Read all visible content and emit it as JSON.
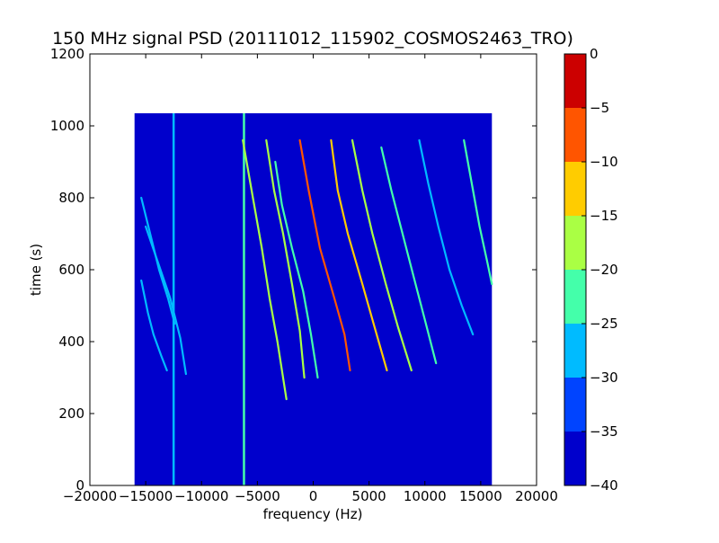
{
  "chart_data": {
    "type": "heatmap",
    "title": "150 MHz signal PSD (20111012_115902_COSMOS2463_TRO)",
    "xlabel": "frequency (Hz)",
    "ylabel": "time (s)",
    "xlim": [
      -20000,
      20000
    ],
    "ylim": [
      0,
      1200
    ],
    "x_ticks": [
      -20000,
      -15000,
      -10000,
      -5000,
      0,
      5000,
      10000,
      15000,
      20000
    ],
    "y_ticks": [
      0,
      200,
      400,
      600,
      800,
      1000,
      1200
    ],
    "data_extent": {
      "x": [
        -16000,
        16000
      ],
      "y": [
        0,
        1035
      ]
    },
    "background_level": -35,
    "colorbar": {
      "range": [
        -40,
        0
      ],
      "ticks": [
        0,
        -5,
        -10,
        -15,
        -20,
        -25,
        -30,
        -35,
        -40
      ],
      "levels": [
        {
          "from": -40,
          "to": -35,
          "color": "#0000cc"
        },
        {
          "from": -35,
          "to": -30,
          "color": "#0044ff"
        },
        {
          "from": -30,
          "to": -25,
          "color": "#00bbff"
        },
        {
          "from": -25,
          "to": -20,
          "color": "#44ffaa"
        },
        {
          "from": -20,
          "to": -15,
          "color": "#aaff44"
        },
        {
          "from": -15,
          "to": -10,
          "color": "#ffcc00"
        },
        {
          "from": -10,
          "to": -5,
          "color": "#ff5500"
        },
        {
          "from": -5,
          "to": 0,
          "color": "#cc0000"
        }
      ]
    },
    "vertical_lines": [
      {
        "x": -12500,
        "y": [
          0,
          1035
        ],
        "level": -26
      },
      {
        "x": -6200,
        "y": [
          0,
          1035
        ],
        "level": -23
      }
    ],
    "doppler_traces": [
      {
        "x": [
          -15400,
          -14600,
          -13800,
          -13000,
          -12400
        ],
        "y": [
          800,
          700,
          600,
          520,
          450
        ],
        "level": -25
      },
      {
        "x": [
          -15400,
          -14800,
          -14300,
          -13600,
          -13100
        ],
        "y": [
          570,
          480,
          420,
          360,
          320
        ],
        "level": -26
      },
      {
        "x": [
          -15000,
          -13900,
          -12800,
          -11900,
          -11400
        ],
        "y": [
          720,
          620,
          520,
          410,
          310
        ],
        "level": -27
      },
      {
        "x": [
          -6300,
          -5400,
          -4600,
          -3900,
          -3200,
          -2400
        ],
        "y": [
          960,
          800,
          660,
          520,
          400,
          240
        ],
        "level": -15
      },
      {
        "x": [
          -4200,
          -3500,
          -2700,
          -1900,
          -1200,
          -800
        ],
        "y": [
          960,
          820,
          700,
          560,
          430,
          300
        ],
        "level": -18
      },
      {
        "x": [
          -3400,
          -2800,
          -1900,
          -900,
          -200,
          400
        ],
        "y": [
          900,
          780,
          660,
          540,
          420,
          300
        ],
        "level": -22
      },
      {
        "x": [
          -1200,
          -400,
          600,
          1900,
          2800,
          3300
        ],
        "y": [
          960,
          820,
          660,
          520,
          420,
          320
        ],
        "level": -8
      },
      {
        "x": [
          1600,
          2200,
          3100,
          4400,
          5500,
          6600
        ],
        "y": [
          960,
          820,
          700,
          560,
          440,
          320
        ],
        "level": -12
      },
      {
        "x": [
          3500,
          4400,
          5300,
          6500,
          7600,
          8800
        ],
        "y": [
          960,
          820,
          700,
          560,
          440,
          320
        ],
        "level": -18
      },
      {
        "x": [
          6100,
          7000,
          8000,
          9000,
          10000,
          11000
        ],
        "y": [
          940,
          820,
          700,
          580,
          460,
          340
        ],
        "level": -24
      },
      {
        "x": [
          9500,
          10300,
          11200,
          12200,
          13300,
          14300
        ],
        "y": [
          960,
          840,
          720,
          600,
          500,
          420
        ],
        "level": -25
      },
      {
        "x": [
          13500,
          14200,
          14900,
          15600,
          16000
        ],
        "y": [
          960,
          840,
          720,
          620,
          560
        ],
        "level": -24
      }
    ]
  }
}
